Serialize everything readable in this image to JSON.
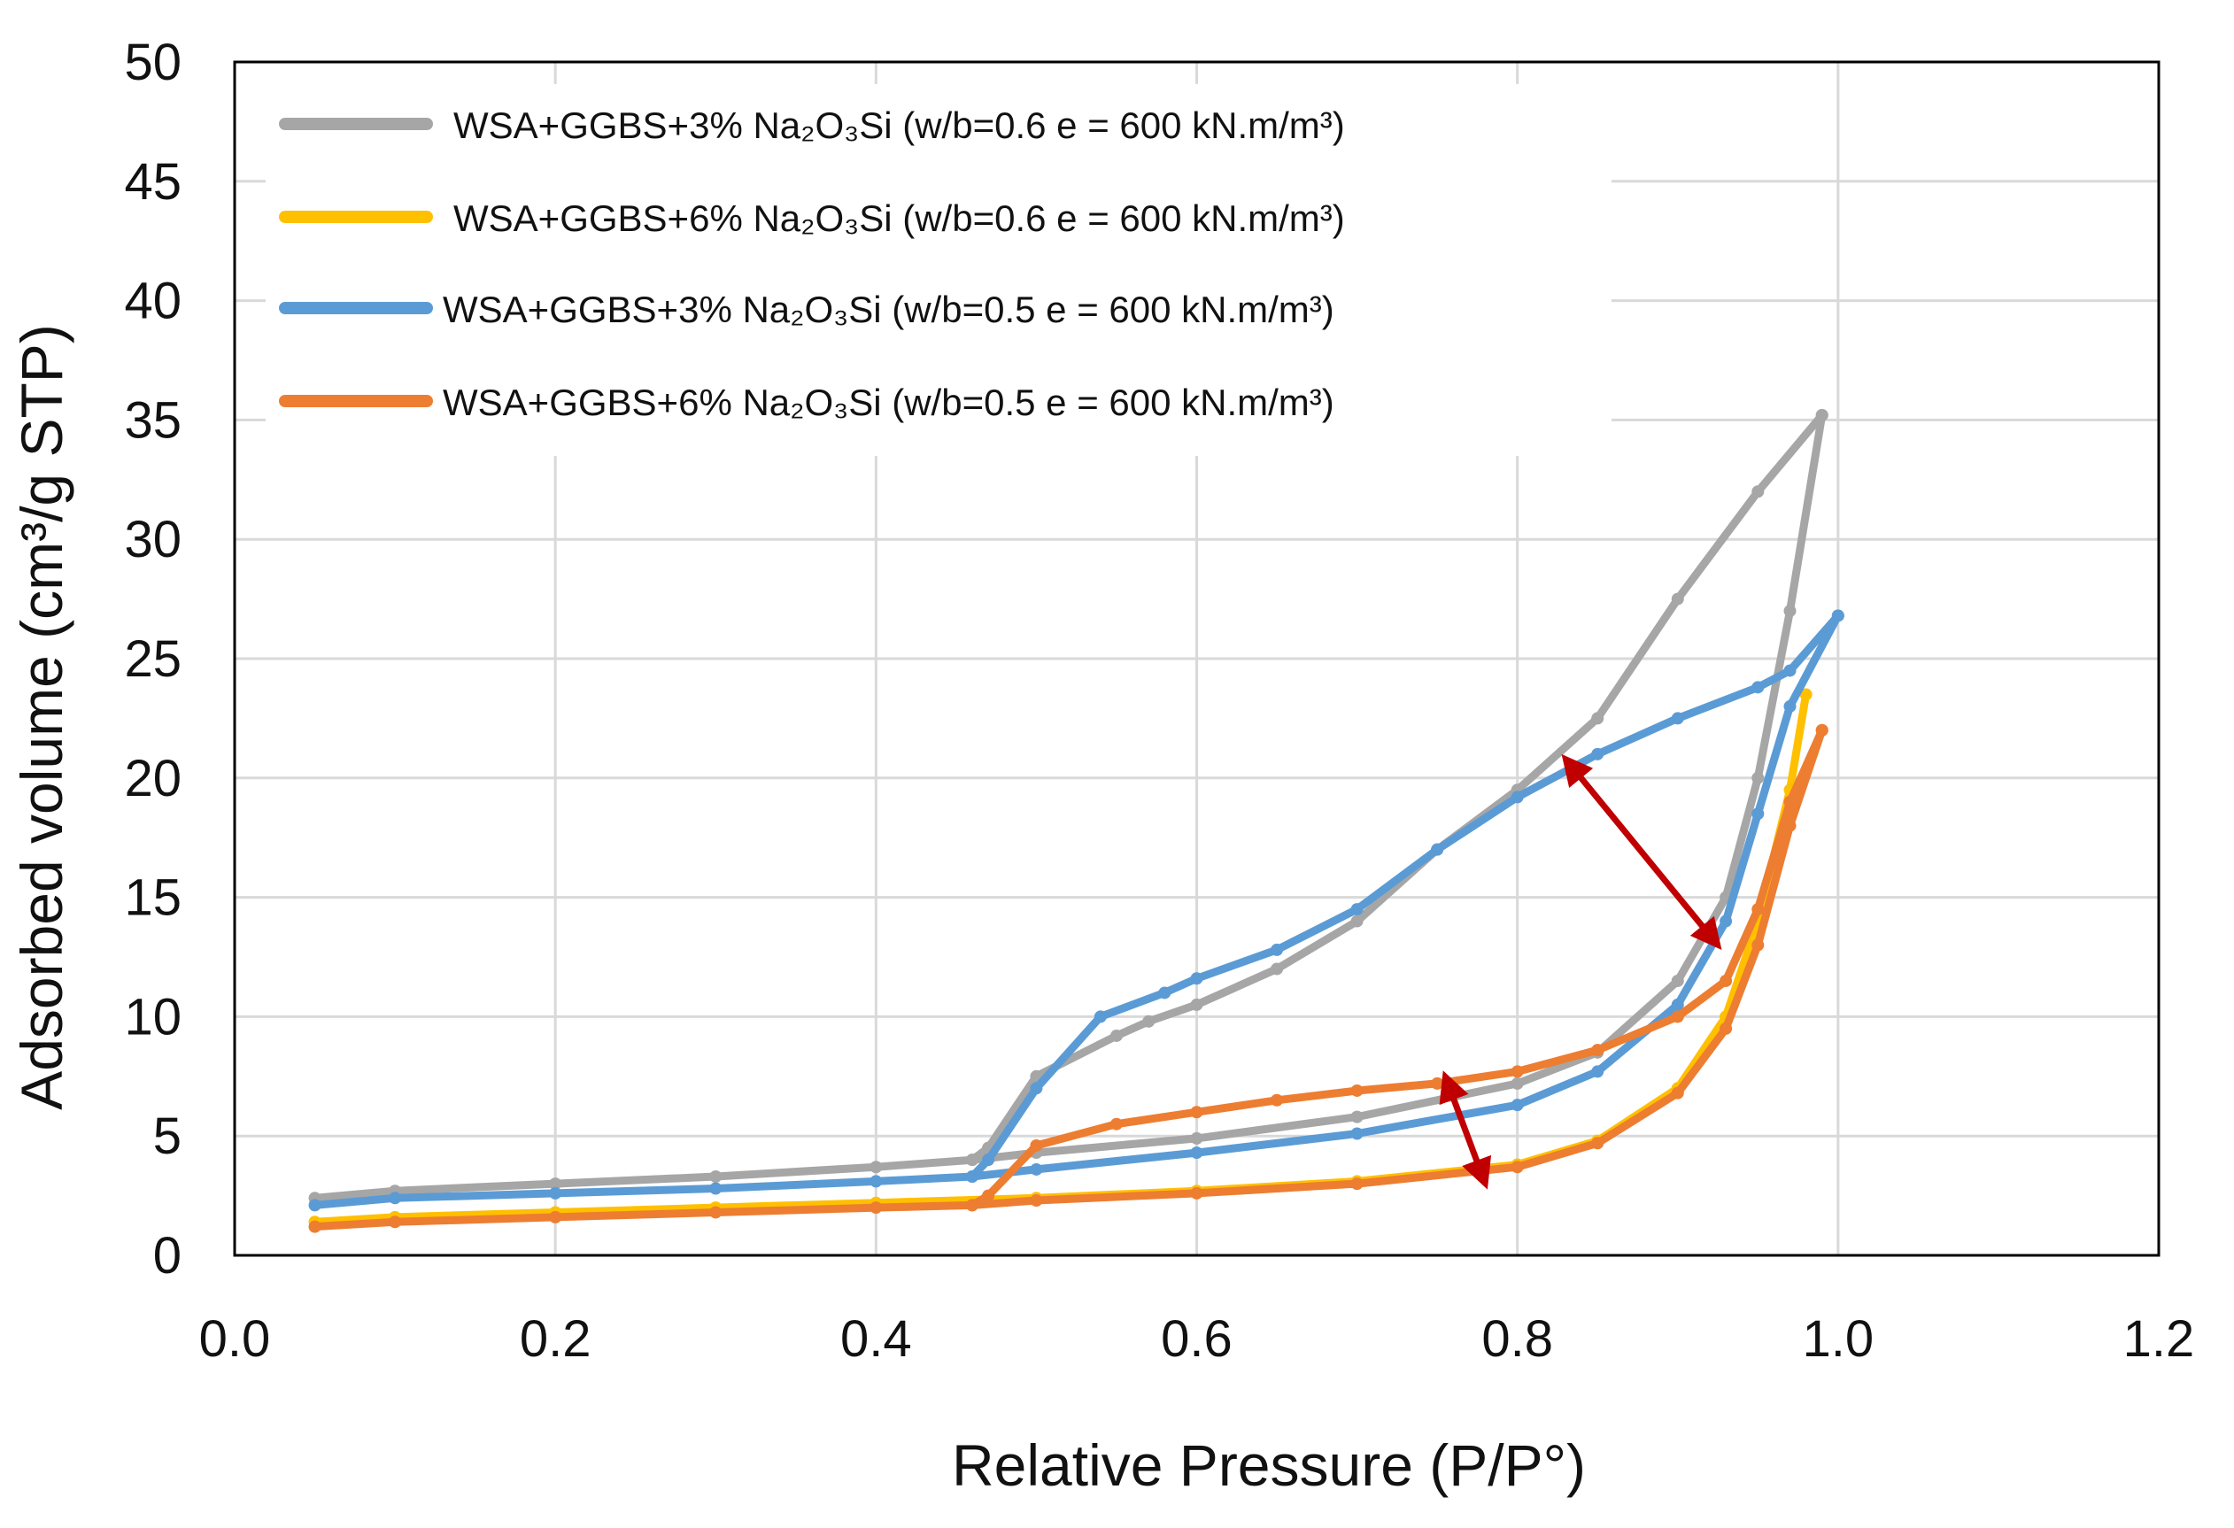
{
  "chart_data": {
    "type": "line",
    "title": "",
    "xlabel": "Relative Pressure (P/P°)",
    "ylabel": "Adsorbed volume (cm³/g STP)",
    "xlim": [
      0.0,
      1.2
    ],
    "ylim": [
      0,
      50
    ],
    "xticks": [
      "0.0",
      "0.2",
      "0.4",
      "0.6",
      "0.8",
      "1.0",
      "1.2"
    ],
    "yticks": [
      "0",
      "5",
      "10",
      "15",
      "20",
      "25",
      "30",
      "35",
      "40",
      "45",
      "50"
    ],
    "grid": true,
    "legend_position": "top-left",
    "series": [
      {
        "name": "WSA+GGBS+3% Na₂O₃Si (w/b=0.6 e = 600 kN.m/m³)",
        "color": "#a6a6a6",
        "adsorption": [
          [
            0.05,
            2.4
          ],
          [
            0.1,
            2.7
          ],
          [
            0.2,
            3.0
          ],
          [
            0.3,
            3.3
          ],
          [
            0.4,
            3.7
          ],
          [
            0.46,
            4.0
          ],
          [
            0.5,
            4.3
          ],
          [
            0.6,
            4.9
          ],
          [
            0.7,
            5.8
          ],
          [
            0.8,
            7.2
          ],
          [
            0.85,
            8.5
          ],
          [
            0.9,
            11.5
          ],
          [
            0.93,
            15.0
          ],
          [
            0.95,
            20.0
          ],
          [
            0.97,
            27.0
          ],
          [
            0.99,
            35.2
          ]
        ],
        "desorption": [
          [
            0.99,
            35.2
          ],
          [
            0.95,
            32.0
          ],
          [
            0.9,
            27.5
          ],
          [
            0.85,
            22.5
          ],
          [
            0.8,
            19.5
          ],
          [
            0.75,
            17.0
          ],
          [
            0.7,
            14.0
          ],
          [
            0.65,
            12.0
          ],
          [
            0.6,
            10.5
          ],
          [
            0.57,
            9.8
          ],
          [
            0.55,
            9.2
          ],
          [
            0.5,
            7.5
          ],
          [
            0.47,
            4.5
          ],
          [
            0.46,
            4.0
          ]
        ]
      },
      {
        "name": "WSA+GGBS+6% Na₂O₃Si (w/b=0.6 e = 600 kN.m/m³)",
        "color": "#ffc000",
        "adsorption": [
          [
            0.05,
            1.4
          ],
          [
            0.1,
            1.6
          ],
          [
            0.2,
            1.8
          ],
          [
            0.3,
            2.0
          ],
          [
            0.4,
            2.2
          ],
          [
            0.5,
            2.4
          ],
          [
            0.6,
            2.7
          ],
          [
            0.7,
            3.1
          ],
          [
            0.8,
            3.8
          ],
          [
            0.85,
            4.8
          ],
          [
            0.9,
            7.0
          ],
          [
            0.93,
            10.0
          ],
          [
            0.95,
            14.0
          ],
          [
            0.97,
            19.5
          ],
          [
            0.98,
            23.5
          ]
        ],
        "desorption": []
      },
      {
        "name": "WSA+GGBS+3% Na₂O₃Si (w/b=0.5 e = 600 kN.m/m³)",
        "color": "#5b9bd5",
        "adsorption": [
          [
            0.05,
            2.1
          ],
          [
            0.1,
            2.4
          ],
          [
            0.2,
            2.6
          ],
          [
            0.3,
            2.8
          ],
          [
            0.4,
            3.1
          ],
          [
            0.46,
            3.3
          ],
          [
            0.5,
            3.6
          ],
          [
            0.6,
            4.3
          ],
          [
            0.7,
            5.1
          ],
          [
            0.8,
            6.3
          ],
          [
            0.85,
            7.7
          ],
          [
            0.9,
            10.5
          ],
          [
            0.93,
            14.0
          ],
          [
            0.95,
            18.5
          ],
          [
            0.97,
            23.0
          ],
          [
            1.0,
            26.8
          ]
        ],
        "desorption": [
          [
            1.0,
            26.8
          ],
          [
            0.97,
            24.5
          ],
          [
            0.95,
            23.8
          ],
          [
            0.9,
            22.5
          ],
          [
            0.85,
            21.0
          ],
          [
            0.8,
            19.2
          ],
          [
            0.75,
            17.0
          ],
          [
            0.7,
            14.5
          ],
          [
            0.65,
            12.8
          ],
          [
            0.6,
            11.6
          ],
          [
            0.58,
            11.0
          ],
          [
            0.54,
            10.0
          ],
          [
            0.5,
            7.0
          ],
          [
            0.47,
            4.0
          ],
          [
            0.46,
            3.3
          ]
        ]
      },
      {
        "name": "WSA+GGBS+6% Na₂O₃Si (w/b=0.5 e = 600 kN.m/m³)",
        "color": "#ed7d31",
        "adsorption": [
          [
            0.05,
            1.2
          ],
          [
            0.1,
            1.4
          ],
          [
            0.2,
            1.6
          ],
          [
            0.3,
            1.8
          ],
          [
            0.4,
            2.0
          ],
          [
            0.46,
            2.1
          ],
          [
            0.5,
            2.3
          ],
          [
            0.6,
            2.6
          ],
          [
            0.7,
            3.0
          ],
          [
            0.8,
            3.7
          ],
          [
            0.85,
            4.7
          ],
          [
            0.9,
            6.8
          ],
          [
            0.93,
            9.5
          ],
          [
            0.95,
            13.0
          ],
          [
            0.97,
            18.0
          ],
          [
            0.99,
            22.0
          ]
        ],
        "desorption": [
          [
            0.99,
            22.0
          ],
          [
            0.97,
            19.0
          ],
          [
            0.95,
            14.5
          ],
          [
            0.93,
            11.5
          ],
          [
            0.9,
            10.0
          ],
          [
            0.85,
            8.6
          ],
          [
            0.8,
            7.7
          ],
          [
            0.75,
            7.2
          ],
          [
            0.7,
            6.9
          ],
          [
            0.65,
            6.5
          ],
          [
            0.6,
            6.0
          ],
          [
            0.55,
            5.5
          ],
          [
            0.5,
            4.6
          ],
          [
            0.47,
            2.5
          ],
          [
            0.46,
            2.1
          ]
        ]
      }
    ],
    "annotations": [
      {
        "type": "double-arrow",
        "color": "#c00000",
        "from": [
          0.83,
          20.8
        ],
        "to": [
          0.925,
          13.0
        ]
      },
      {
        "type": "double-arrow",
        "color": "#c00000",
        "from": [
          0.755,
          7.5
        ],
        "to": [
          0.78,
          3.0
        ]
      }
    ]
  }
}
